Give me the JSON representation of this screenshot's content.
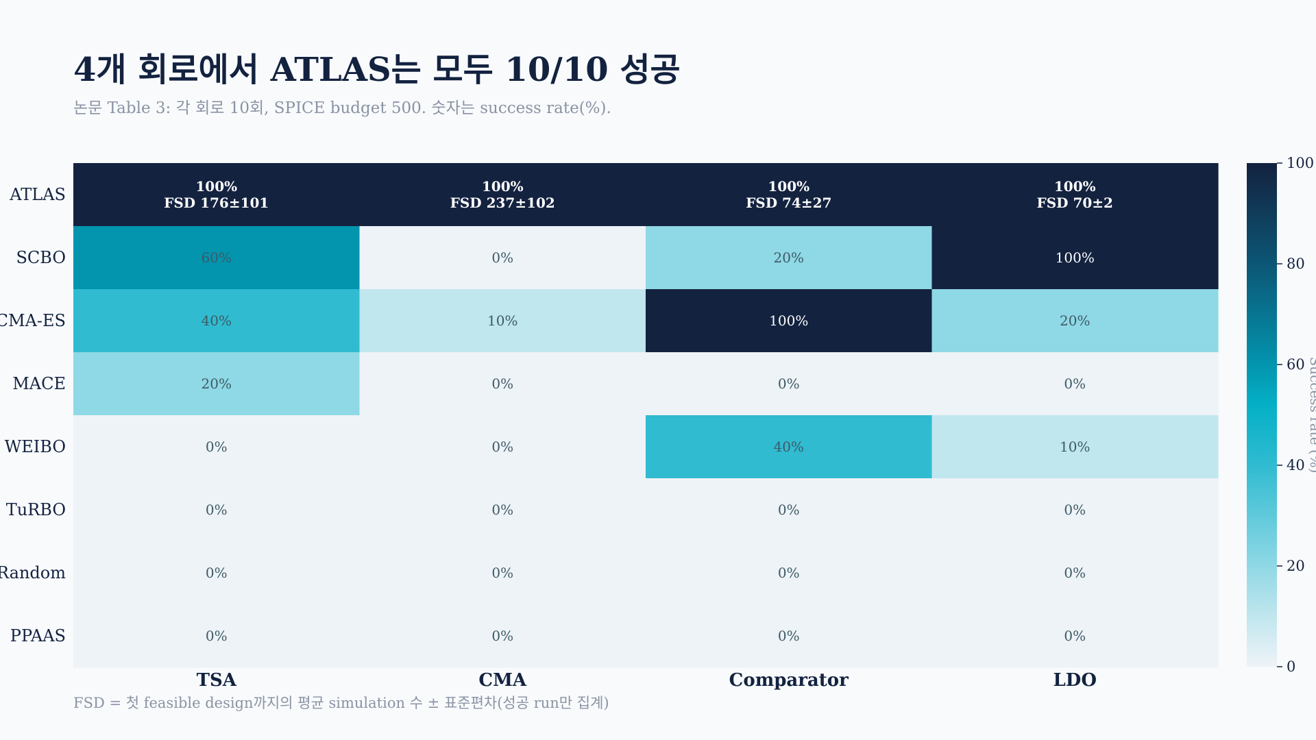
{
  "title": "4개 회로에서 ATLAS는 모두 10/10 성공",
  "subtitle": "논문 Table 3: 각 회로 10회, SPICE budget 500. 숫자는 success rate(%).",
  "footnote": "FSD = 첫 feasible design까지의 평균 simulation 수 ± 표준편차(성공 run만 집계)",
  "chart_data": {
    "type": "heatmap",
    "x_categories": [
      "TSA",
      "CMA",
      "Comparator",
      "LDO"
    ],
    "y_categories": [
      "ATLAS",
      "SCBO",
      "CMA-ES",
      "MACE",
      "WEIBO",
      "TuRBO",
      "Random",
      "PPAAS"
    ],
    "values": [
      [
        100,
        100,
        100,
        100
      ],
      [
        60,
        0,
        20,
        100
      ],
      [
        40,
        10,
        100,
        20
      ],
      [
        20,
        0,
        0,
        0
      ],
      [
        0,
        0,
        40,
        10
      ],
      [
        0,
        0,
        0,
        0
      ],
      [
        0,
        0,
        0,
        0
      ],
      [
        0,
        0,
        0,
        0
      ]
    ],
    "cell_labels": [
      [
        [
          "100%",
          "FSD 176±101"
        ],
        [
          "100%",
          "FSD 237±102"
        ],
        [
          "100%",
          "FSD 74±27"
        ],
        [
          "100%",
          "FSD 70±2"
        ]
      ],
      [
        [
          "60%"
        ],
        [
          "0%"
        ],
        [
          "20%"
        ],
        [
          "100%"
        ]
      ],
      [
        [
          "40%"
        ],
        [
          "10%"
        ],
        [
          "100%"
        ],
        [
          "20%"
        ]
      ],
      [
        [
          "20%"
        ],
        [
          "0%"
        ],
        [
          "0%"
        ],
        [
          "0%"
        ]
      ],
      [
        [
          "0%"
        ],
        [
          "0%"
        ],
        [
          "40%"
        ],
        [
          "10%"
        ]
      ],
      [
        [
          "0%"
        ],
        [
          "0%"
        ],
        [
          "0%"
        ],
        [
          "0%"
        ]
      ],
      [
        [
          "0%"
        ],
        [
          "0%"
        ],
        [
          "0%"
        ],
        [
          "0%"
        ]
      ],
      [
        [
          "0%"
        ],
        [
          "0%"
        ],
        [
          "0%"
        ],
        [
          "0%"
        ]
      ]
    ],
    "colorbar": {
      "label": "Success rate (%)",
      "range": [
        0,
        100
      ],
      "ticks": [
        "0",
        "20",
        "40",
        "60",
        "80",
        "100"
      ]
    },
    "colors": {
      "0": "#eef3f7",
      "10": "#c0e6ee",
      "20": "#8fd8e5",
      "40": "#30bbd1",
      "60": "#0394ae",
      "100": "#13223f",
      "text_dark": "#3d5a66",
      "text_light": "#ffffff"
    }
  }
}
